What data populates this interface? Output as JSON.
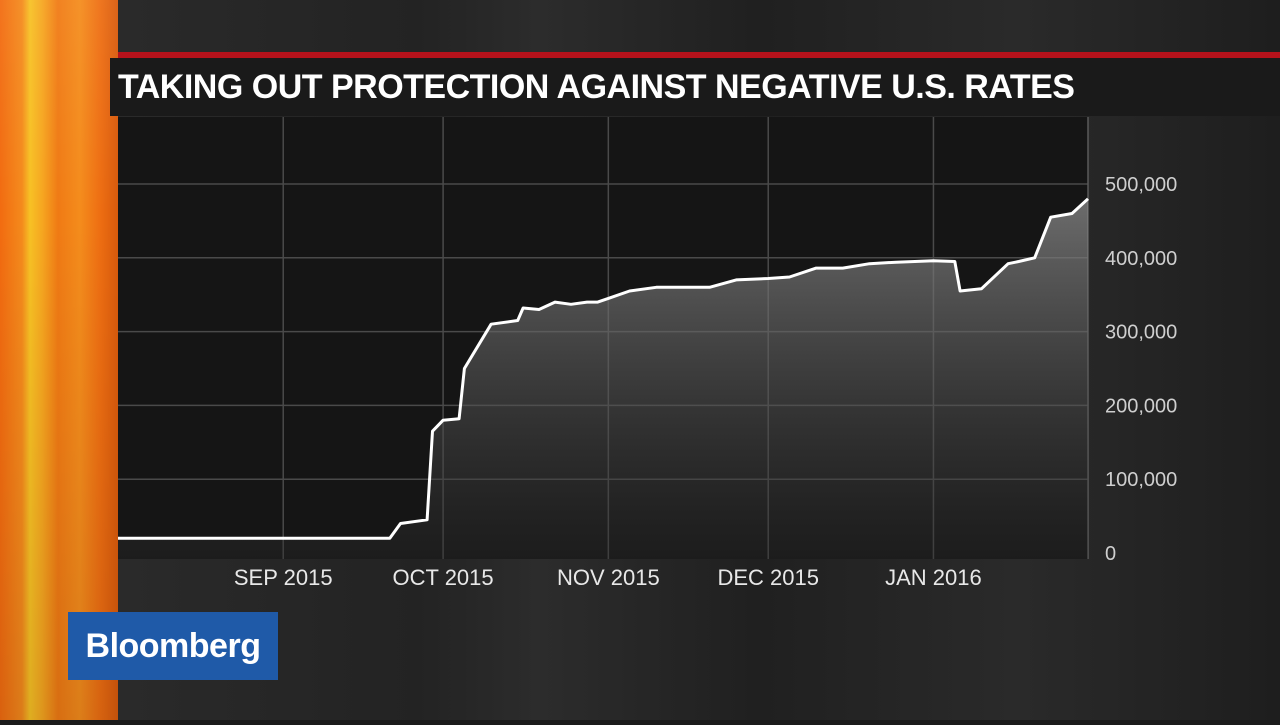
{
  "brand": {
    "logo_text": "Bloomberg"
  },
  "chart_data": {
    "type": "area",
    "title": "TAKING OUT PROTECTION AGAINST NEGATIVE U.S. RATES",
    "x_tick_labels": [
      "SEP 2015",
      "OCT 2015",
      "NOV 2015",
      "DEC 2015",
      "JAN 2016"
    ],
    "y_tick_labels": [
      "0",
      "100,000",
      "200,000",
      "300,000",
      "400,000",
      "500,000"
    ],
    "y_ticks": [
      0,
      100000,
      200000,
      300000,
      400000,
      500000
    ],
    "ylim": [
      0,
      500000
    ],
    "grid": true,
    "y_axis_side": "right",
    "x": [
      "2015-08-01",
      "2015-08-15",
      "2015-09-01",
      "2015-09-15",
      "2015-09-21",
      "2015-09-23",
      "2015-09-28",
      "2015-09-29",
      "2015-10-01",
      "2015-10-04",
      "2015-10-05",
      "2015-10-10",
      "2015-10-15",
      "2015-10-16",
      "2015-10-19",
      "2015-10-22",
      "2015-10-25",
      "2015-10-28",
      "2015-10-30",
      "2015-11-01",
      "2015-11-05",
      "2015-11-10",
      "2015-11-15",
      "2015-11-20",
      "2015-11-25",
      "2015-12-01",
      "2015-12-05",
      "2015-12-10",
      "2015-12-15",
      "2015-12-20",
      "2015-12-25",
      "2016-01-01",
      "2016-01-05",
      "2016-01-06",
      "2016-01-10",
      "2016-01-15",
      "2016-01-17",
      "2016-01-20",
      "2016-01-23",
      "2016-01-27",
      "2016-01-30"
    ],
    "series": [
      {
        "values": [
          20000,
          20000,
          20000,
          20000,
          20000,
          40000,
          45000,
          165000,
          180000,
          182000,
          250000,
          310000,
          315000,
          332000,
          330000,
          340000,
          337000,
          340000,
          340000,
          345000,
          355000,
          360000,
          360000,
          360000,
          370000,
          372000,
          374000,
          386000,
          386000,
          392000,
          394000,
          396000,
          395000,
          355000,
          358000,
          392000,
          395000,
          400000,
          455000,
          460000,
          480000
        ]
      }
    ]
  }
}
